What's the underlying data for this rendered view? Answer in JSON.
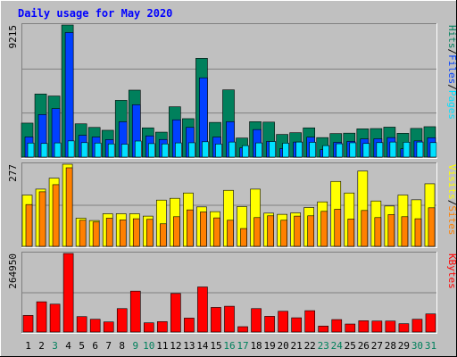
{
  "chart_data": [
    {
      "type": "bar",
      "title": "Daily usage for May 2020",
      "categories": [
        "1",
        "2",
        "3",
        "4",
        "5",
        "6",
        "7",
        "8",
        "9",
        "10",
        "11",
        "12",
        "13",
        "14",
        "15",
        "16",
        "17",
        "18",
        "19",
        "20",
        "21",
        "22",
        "23",
        "24",
        "25",
        "26",
        "27",
        "28",
        "29",
        "30",
        "31"
      ],
      "weekend_days": [
        "3",
        "9",
        "10",
        "16",
        "17",
        "23",
        "24",
        "30",
        "31"
      ],
      "ymax_label": "9215",
      "ymax": 9215,
      "side_labels": [
        "Pages",
        "Files",
        "Hits"
      ],
      "series": [
        {
          "name": "Hits",
          "color": "#00805c",
          "values": [
            2370,
            4400,
            4260,
            9215,
            2320,
            2070,
            1870,
            3960,
            4670,
            2040,
            1740,
            3510,
            2680,
            6890,
            2420,
            4690,
            1330,
            2470,
            2440,
            1580,
            1700,
            2040,
            1360,
            1640,
            1670,
            1970,
            1990,
            2090,
            1660,
            2000,
            2120
          ]
        },
        {
          "name": "Files",
          "color": "#0040ff",
          "values": [
            1410,
            2970,
            3380,
            8690,
            1520,
            1400,
            1220,
            2460,
            3650,
            1480,
            1230,
            2600,
            2070,
            5530,
            1400,
            2470,
            640,
            1920,
            1100,
            600,
            1050,
            1390,
            520,
            1030,
            1100,
            1270,
            1280,
            1360,
            580,
            1130,
            1350
          ]
        },
        {
          "name": "Pages",
          "color": "#00e0ff",
          "values": [
            980,
            950,
            990,
            1130,
            1010,
            980,
            920,
            900,
            1120,
            940,
            920,
            990,
            1000,
            1070,
            910,
            1050,
            800,
            990,
            1090,
            970,
            1050,
            1030,
            800,
            930,
            1000,
            950,
            1010,
            1050,
            1040,
            1050,
            1010
          ]
        }
      ]
    },
    {
      "type": "bar",
      "ymax_label": "277",
      "ymax": 277,
      "side_labels": [
        "Sites",
        "Visits"
      ],
      "series": [
        {
          "name": "Visits",
          "color": "#ffff00",
          "values": [
            173,
            193,
            230,
            277,
            95,
            87,
            110,
            110,
            110,
            102,
            156,
            162,
            180,
            133,
            117,
            189,
            134,
            193,
            112,
            108,
            113,
            131,
            150,
            219,
            180,
            254,
            153,
            136,
            173,
            157,
            211
          ]
        },
        {
          "name": "Sites",
          "color": "#ff8000",
          "values": [
            141,
            184,
            208,
            265,
            88,
            82,
            95,
            89,
            93,
            91,
            76,
            100,
            123,
            116,
            96,
            88,
            60,
            97,
            103,
            88,
            102,
            103,
            118,
            125,
            92,
            121,
            97,
            107,
            100,
            93,
            130
          ]
        }
      ]
    },
    {
      "type": "bar",
      "ymax_label": "264950",
      "ymax": 264950,
      "side_labels": [
        "KBytes"
      ],
      "series": [
        {
          "name": "KBytes",
          "color": "#ff0000",
          "values": [
            56000,
            102000,
            94000,
            264950,
            52000,
            43000,
            34000,
            79000,
            138000,
            31000,
            35000,
            130000,
            47000,
            152000,
            83000,
            87000,
            18000,
            79000,
            53000,
            70000,
            48000,
            72000,
            20000,
            42000,
            27000,
            38000,
            37000,
            37000,
            28000,
            43000,
            61000
          ]
        }
      ]
    }
  ],
  "colors": {
    "background": "#c0c0c0",
    "title": "#0000ff",
    "axis_weekday": "#000000",
    "axis_weekend": "#00805c"
  }
}
